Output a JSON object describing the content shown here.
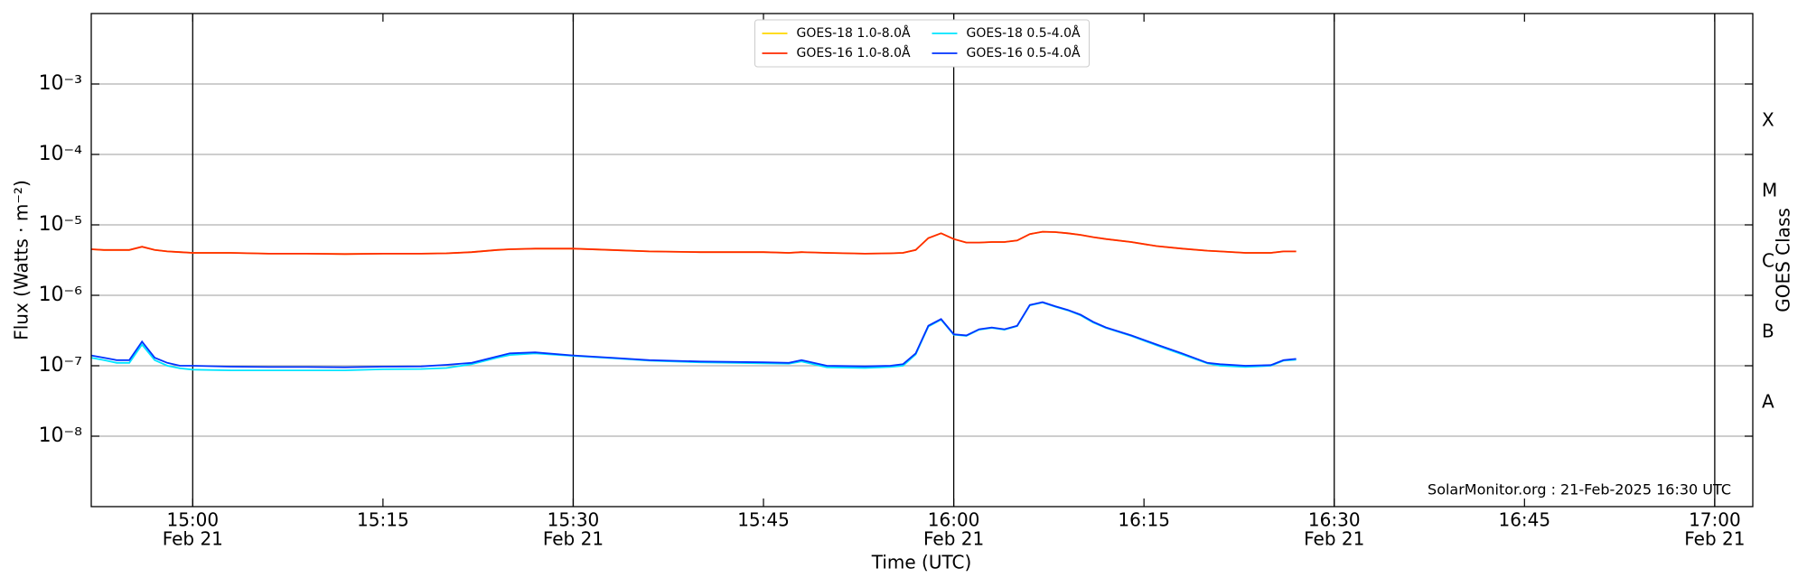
{
  "chart_data": {
    "type": "line",
    "xlabel": "Time (UTC)",
    "ylabel": "Flux (Watts · m⁻²)",
    "y2label": "GOES Class",
    "annotation": "SolarMonitor.org : 21-Feb-2025 16:30 UTC",
    "log_y": true,
    "grid": "y",
    "legend": "upper center",
    "x": [
      "14:52",
      "14:53",
      "14:54",
      "14:55",
      "14:56",
      "14:57",
      "14:58",
      "14:59",
      "15:00",
      "15:03",
      "15:06",
      "15:09",
      "15:12",
      "15:15",
      "15:18",
      "15:20",
      "15:22",
      "15:24",
      "15:25",
      "15:27",
      "15:30",
      "15:33",
      "15:36",
      "15:40",
      "15:45",
      "15:47",
      "15:48",
      "15:50",
      "15:53",
      "15:55",
      "15:56",
      "15:57",
      "15:58",
      "15:59",
      "16:00",
      "16:01",
      "16:02",
      "16:03",
      "16:04",
      "16:05",
      "16:06",
      "16:07",
      "16:08",
      "16:09",
      "16:10",
      "16:11",
      "16:12",
      "16:14",
      "16:16",
      "16:18",
      "16:20",
      "16:21",
      "16:23",
      "16:25",
      "16:26",
      "16:27"
    ],
    "series": [
      {
        "name": "GOES-18 1.0-8.0Å",
        "color": "#ffd700",
        "values": [
          4.5e-06,
          4.4e-06,
          4.4e-06,
          4.4e-06,
          4.9e-06,
          4.4e-06,
          4.2e-06,
          4.1e-06,
          4e-06,
          4e-06,
          3.9e-06,
          3.9e-06,
          3.85e-06,
          3.9e-06,
          3.9e-06,
          3.95e-06,
          4.1e-06,
          4.4e-06,
          4.5e-06,
          4.6e-06,
          4.6e-06,
          4.4e-06,
          4.2e-06,
          4.1e-06,
          4.1e-06,
          4e-06,
          4.1e-06,
          4e-06,
          3.9e-06,
          3.95e-06,
          4e-06,
          4.4e-06,
          6.5e-06,
          7.6e-06,
          6.3e-06,
          5.6e-06,
          5.6e-06,
          5.7e-06,
          5.7e-06,
          6e-06,
          7.4e-06,
          8e-06,
          7.9e-06,
          7.6e-06,
          7.2e-06,
          6.7e-06,
          6.3e-06,
          5.7e-06,
          5e-06,
          4.6e-06,
          4.3e-06,
          4.2e-06,
          4e-06,
          4e-06,
          4.2e-06,
          4.2e-06
        ]
      },
      {
        "name": "GOES-16 1.0-8.0Å",
        "color": "#ff2a00",
        "values": [
          4.5e-06,
          4.4e-06,
          4.4e-06,
          4.4e-06,
          4.9e-06,
          4.4e-06,
          4.2e-06,
          4.1e-06,
          4e-06,
          4e-06,
          3.9e-06,
          3.9e-06,
          3.85e-06,
          3.9e-06,
          3.9e-06,
          3.95e-06,
          4.1e-06,
          4.4e-06,
          4.5e-06,
          4.6e-06,
          4.6e-06,
          4.4e-06,
          4.2e-06,
          4.1e-06,
          4.1e-06,
          4e-06,
          4.1e-06,
          4e-06,
          3.9e-06,
          3.95e-06,
          4e-06,
          4.4e-06,
          6.5e-06,
          7.6e-06,
          6.3e-06,
          5.6e-06,
          5.6e-06,
          5.7e-06,
          5.7e-06,
          6e-06,
          7.4e-06,
          8e-06,
          7.9e-06,
          7.6e-06,
          7.2e-06,
          6.7e-06,
          6.3e-06,
          5.7e-06,
          5e-06,
          4.6e-06,
          4.3e-06,
          4.2e-06,
          4e-06,
          4e-06,
          4.2e-06,
          4.2e-06
        ]
      },
      {
        "name": "GOES-18 0.5-4.0Å",
        "color": "#00e5ff",
        "values": [
          1.3e-07,
          1.2e-07,
          1.1e-07,
          1.1e-07,
          2e-07,
          1.2e-07,
          1e-07,
          9.2e-08,
          8.8e-08,
          8.6e-08,
          8.6e-08,
          8.6e-08,
          8.6e-08,
          8.9e-08,
          9e-08,
          9.3e-08,
          1.05e-07,
          1.3e-07,
          1.42e-07,
          1.5e-07,
          1.38e-07,
          1.28e-07,
          1.18e-07,
          1.12e-07,
          1.08e-07,
          1.07e-07,
          1.15e-07,
          9.5e-08,
          9.3e-08,
          9.6e-08,
          1e-07,
          1.45e-07,
          3.6e-07,
          4.5e-07,
          2.75e-07,
          2.65e-07,
          3.25e-07,
          3.45e-07,
          3.25e-07,
          3.65e-07,
          7.2e-07,
          7.9e-07,
          6.9e-07,
          6.1e-07,
          5.2e-07,
          4.1e-07,
          3.45e-07,
          2.65e-07,
          1.95e-07,
          1.45e-07,
          1.08e-07,
          1e-07,
          9.6e-08,
          1e-07,
          1.18e-07,
          1.22e-07
        ]
      },
      {
        "name": "GOES-16 0.5-4.0Å",
        "color": "#0033ff",
        "values": [
          1.4e-07,
          1.3e-07,
          1.2e-07,
          1.2e-07,
          2.2e-07,
          1.3e-07,
          1.1e-07,
          1e-07,
          1e-07,
          9.7e-08,
          9.6e-08,
          9.6e-08,
          9.5e-08,
          9.7e-08,
          9.8e-08,
          1.03e-07,
          1.1e-07,
          1.35e-07,
          1.5e-07,
          1.55e-07,
          1.4e-07,
          1.3e-07,
          1.2e-07,
          1.15e-07,
          1.12e-07,
          1.1e-07,
          1.2e-07,
          1e-07,
          9.8e-08,
          1e-07,
          1.05e-07,
          1.5e-07,
          3.7e-07,
          4.6e-07,
          2.8e-07,
          2.7e-07,
          3.3e-07,
          3.5e-07,
          3.3e-07,
          3.7e-07,
          7.3e-07,
          8e-07,
          7e-07,
          6.2e-07,
          5.3e-07,
          4.2e-07,
          3.5e-07,
          2.7e-07,
          2e-07,
          1.5e-07,
          1.1e-07,
          1.05e-07,
          1e-07,
          1.02e-07,
          1.2e-07,
          1.25e-07
        ]
      }
    ],
    "xlim": [
      "14:52",
      "17:03"
    ],
    "xticks": [
      {
        "value": "15:00",
        "label": "15:00",
        "date": "Feb 21"
      },
      {
        "value": "15:15",
        "label": "15:15"
      },
      {
        "value": "15:30",
        "label": "15:30",
        "date": "Feb 21"
      },
      {
        "value": "15:45",
        "label": "15:45"
      },
      {
        "value": "16:00",
        "label": "16:00",
        "date": "Feb 21"
      },
      {
        "value": "16:15",
        "label": "16:15"
      },
      {
        "value": "16:30",
        "label": "16:30",
        "date": "Feb 21"
      },
      {
        "value": "16:45",
        "label": "16:45"
      },
      {
        "value": "17:00",
        "label": "17:00",
        "date": "Feb 21"
      }
    ],
    "vlines": [
      "15:00",
      "15:30",
      "16:00",
      "16:30",
      "17:00"
    ],
    "ylim": [
      1e-09,
      0.01
    ],
    "yticks": [
      {
        "value": 1e-08,
        "label": "10⁻⁸"
      },
      {
        "value": 1e-07,
        "label": "10⁻⁷"
      },
      {
        "value": 1e-06,
        "label": "10⁻⁶"
      },
      {
        "value": 1e-05,
        "label": "10⁻⁵"
      },
      {
        "value": 0.0001,
        "label": "10⁻⁴"
      },
      {
        "value": 0.001,
        "label": "10⁻³"
      }
    ],
    "y2lim": [
      1e-09,
      0.01
    ],
    "y2ticks": [
      {
        "value": 3e-08,
        "label": "A"
      },
      {
        "value": 3e-07,
        "label": "B"
      },
      {
        "value": 3e-06,
        "label": "C"
      },
      {
        "value": 3e-05,
        "label": "M"
      },
      {
        "value": 0.0003,
        "label": "X"
      }
    ]
  }
}
